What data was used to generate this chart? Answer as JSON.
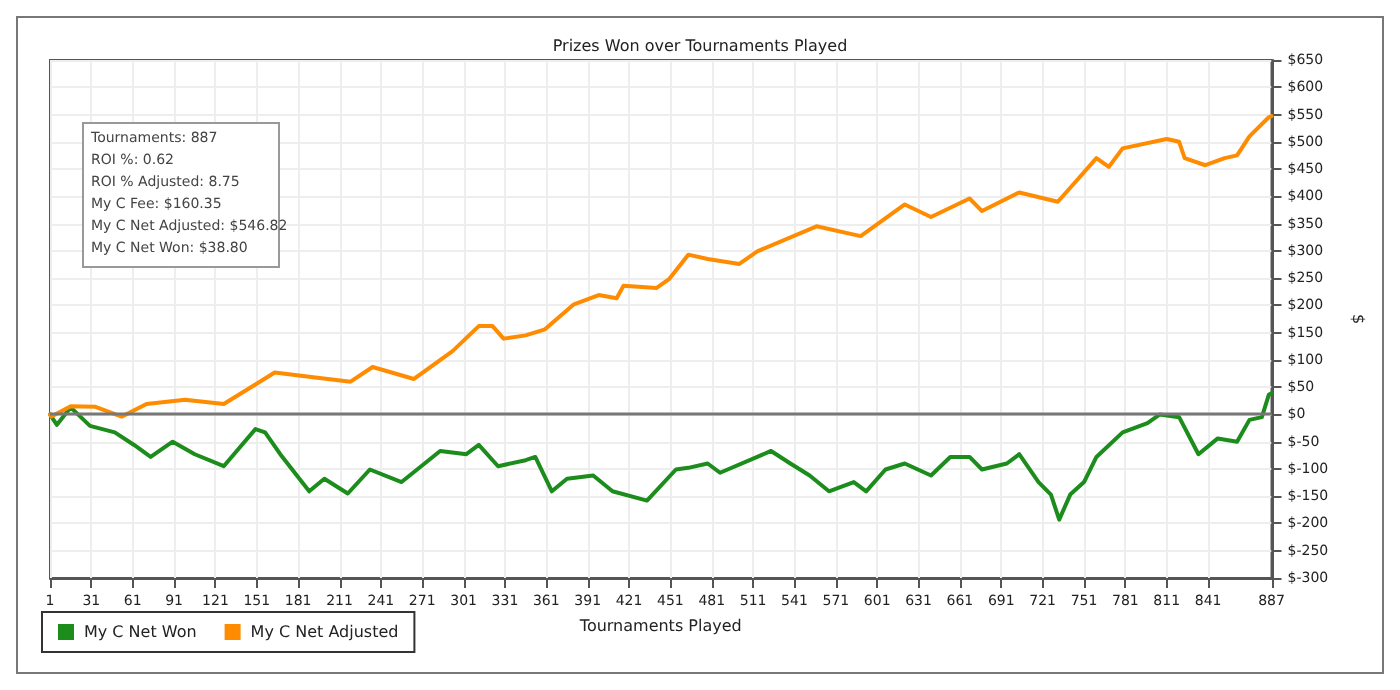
{
  "chart_data": {
    "type": "line",
    "title": "Prizes Won over Tournaments Played",
    "xlabel": "Tournaments Played",
    "ylabel": "$",
    "annotations": [
      "Tournaments: 887",
      "ROI %: 0.62",
      "ROI % Adjusted: 8.75",
      "My C Fee: $160.35",
      "My C Net Adjusted: $546.82",
      "My C Net Won: $38.80"
    ],
    "series": [
      {
        "name": "My C Net Won",
        "color": "#1c8c1c",
        "x": [
          1,
          2,
          6,
          16,
          30,
          48,
          62,
          74,
          90,
          106,
          127,
          150,
          157,
          168,
          189,
          200,
          217,
          233,
          256,
          284,
          303,
          312,
          326,
          346,
          353,
          365,
          376,
          395,
          409,
          434,
          455,
          464,
          478,
          487,
          514,
          524,
          538,
          552,
          566,
          584,
          593,
          607,
          621,
          640,
          654,
          668,
          677,
          695,
          704,
          718,
          727,
          733,
          741,
          751,
          760,
          779,
          797,
          806,
          820,
          834,
          848,
          862,
          871,
          880,
          885,
          887
        ],
        "values": [
          0,
          -4,
          -19,
          13,
          -21,
          -33,
          -56,
          -78,
          -50,
          -73,
          -95,
          -27,
          -33,
          -73,
          -141,
          -118,
          -145,
          -101,
          -124,
          -67,
          -73,
          -56,
          -95,
          -84,
          -78,
          -141,
          -118,
          -112,
          -141,
          -158,
          -101,
          -98,
          -90,
          -107,
          -78,
          -67,
          -90,
          -112,
          -141,
          -124,
          -141,
          -101,
          -90,
          -112,
          -78,
          -78,
          -101,
          -90,
          -73,
          -124,
          -147,
          -193,
          -147,
          -124,
          -78,
          -33,
          -16,
          0,
          -5,
          -73,
          -44,
          -50,
          -10,
          -5,
          36,
          39
        ]
      },
      {
        "name": "My C Net Adjusted",
        "color": "#ff8c00",
        "x": [
          1,
          2,
          16,
          34,
          53,
          71,
          99,
          127,
          164,
          183,
          219,
          235,
          265,
          293,
          312,
          322,
          330,
          346,
          360,
          381,
          399,
          412,
          417,
          441,
          450,
          464,
          478,
          501,
          514,
          557,
          589,
          621,
          640,
          668,
          677,
          704,
          732,
          746,
          760,
          769,
          779,
          811,
          820,
          824,
          839,
          853,
          862,
          871,
          885,
          887
        ],
        "values": [
          0,
          -4,
          15,
          14,
          -4,
          19,
          27,
          19,
          77,
          71,
          60,
          87,
          65,
          116,
          162,
          162,
          139,
          145,
          156,
          202,
          219,
          213,
          236,
          232,
          248,
          293,
          285,
          276,
          299,
          345,
          327,
          385,
          362,
          396,
          373,
          407,
          390,
          430,
          470,
          454,
          488,
          505,
          500,
          470,
          457,
          470,
          475,
          510,
          545,
          547
        ]
      }
    ],
    "xlim": [
      1,
      887
    ],
    "xticks": [
      1,
      31,
      61,
      91,
      121,
      151,
      181,
      211,
      241,
      271,
      301,
      331,
      361,
      391,
      421,
      451,
      481,
      511,
      541,
      571,
      601,
      631,
      661,
      691,
      721,
      751,
      781,
      811,
      841,
      887
    ],
    "ylim": [
      -300,
      650
    ],
    "yticks": [
      {
        "value": -300,
        "label": "$-300"
      },
      {
        "value": -250,
        "label": "$-250"
      },
      {
        "value": -200,
        "label": "$-200"
      },
      {
        "value": -150,
        "label": "$-150"
      },
      {
        "value": -100,
        "label": "$-100"
      },
      {
        "value": -50,
        "label": "$-50"
      },
      {
        "value": 0,
        "label": "$0"
      },
      {
        "value": 50,
        "label": "$50"
      },
      {
        "value": 100,
        "label": "$100"
      },
      {
        "value": 150,
        "label": "$150"
      },
      {
        "value": 200,
        "label": "$200"
      },
      {
        "value": 250,
        "label": "$250"
      },
      {
        "value": 300,
        "label": "$300"
      },
      {
        "value": 350,
        "label": "$350"
      },
      {
        "value": 400,
        "label": "$400"
      },
      {
        "value": 450,
        "label": "$450"
      },
      {
        "value": 500,
        "label": "$500"
      },
      {
        "value": 550,
        "label": "$550"
      },
      {
        "value": 600,
        "label": "$600"
      },
      {
        "value": 650,
        "label": "$650"
      }
    ],
    "ref_lines": [
      {
        "axis": "y",
        "value": 0,
        "color": "#777777"
      }
    ],
    "grid": true,
    "legend": "bottom left",
    "marker": "none",
    "line_style": "solid"
  }
}
